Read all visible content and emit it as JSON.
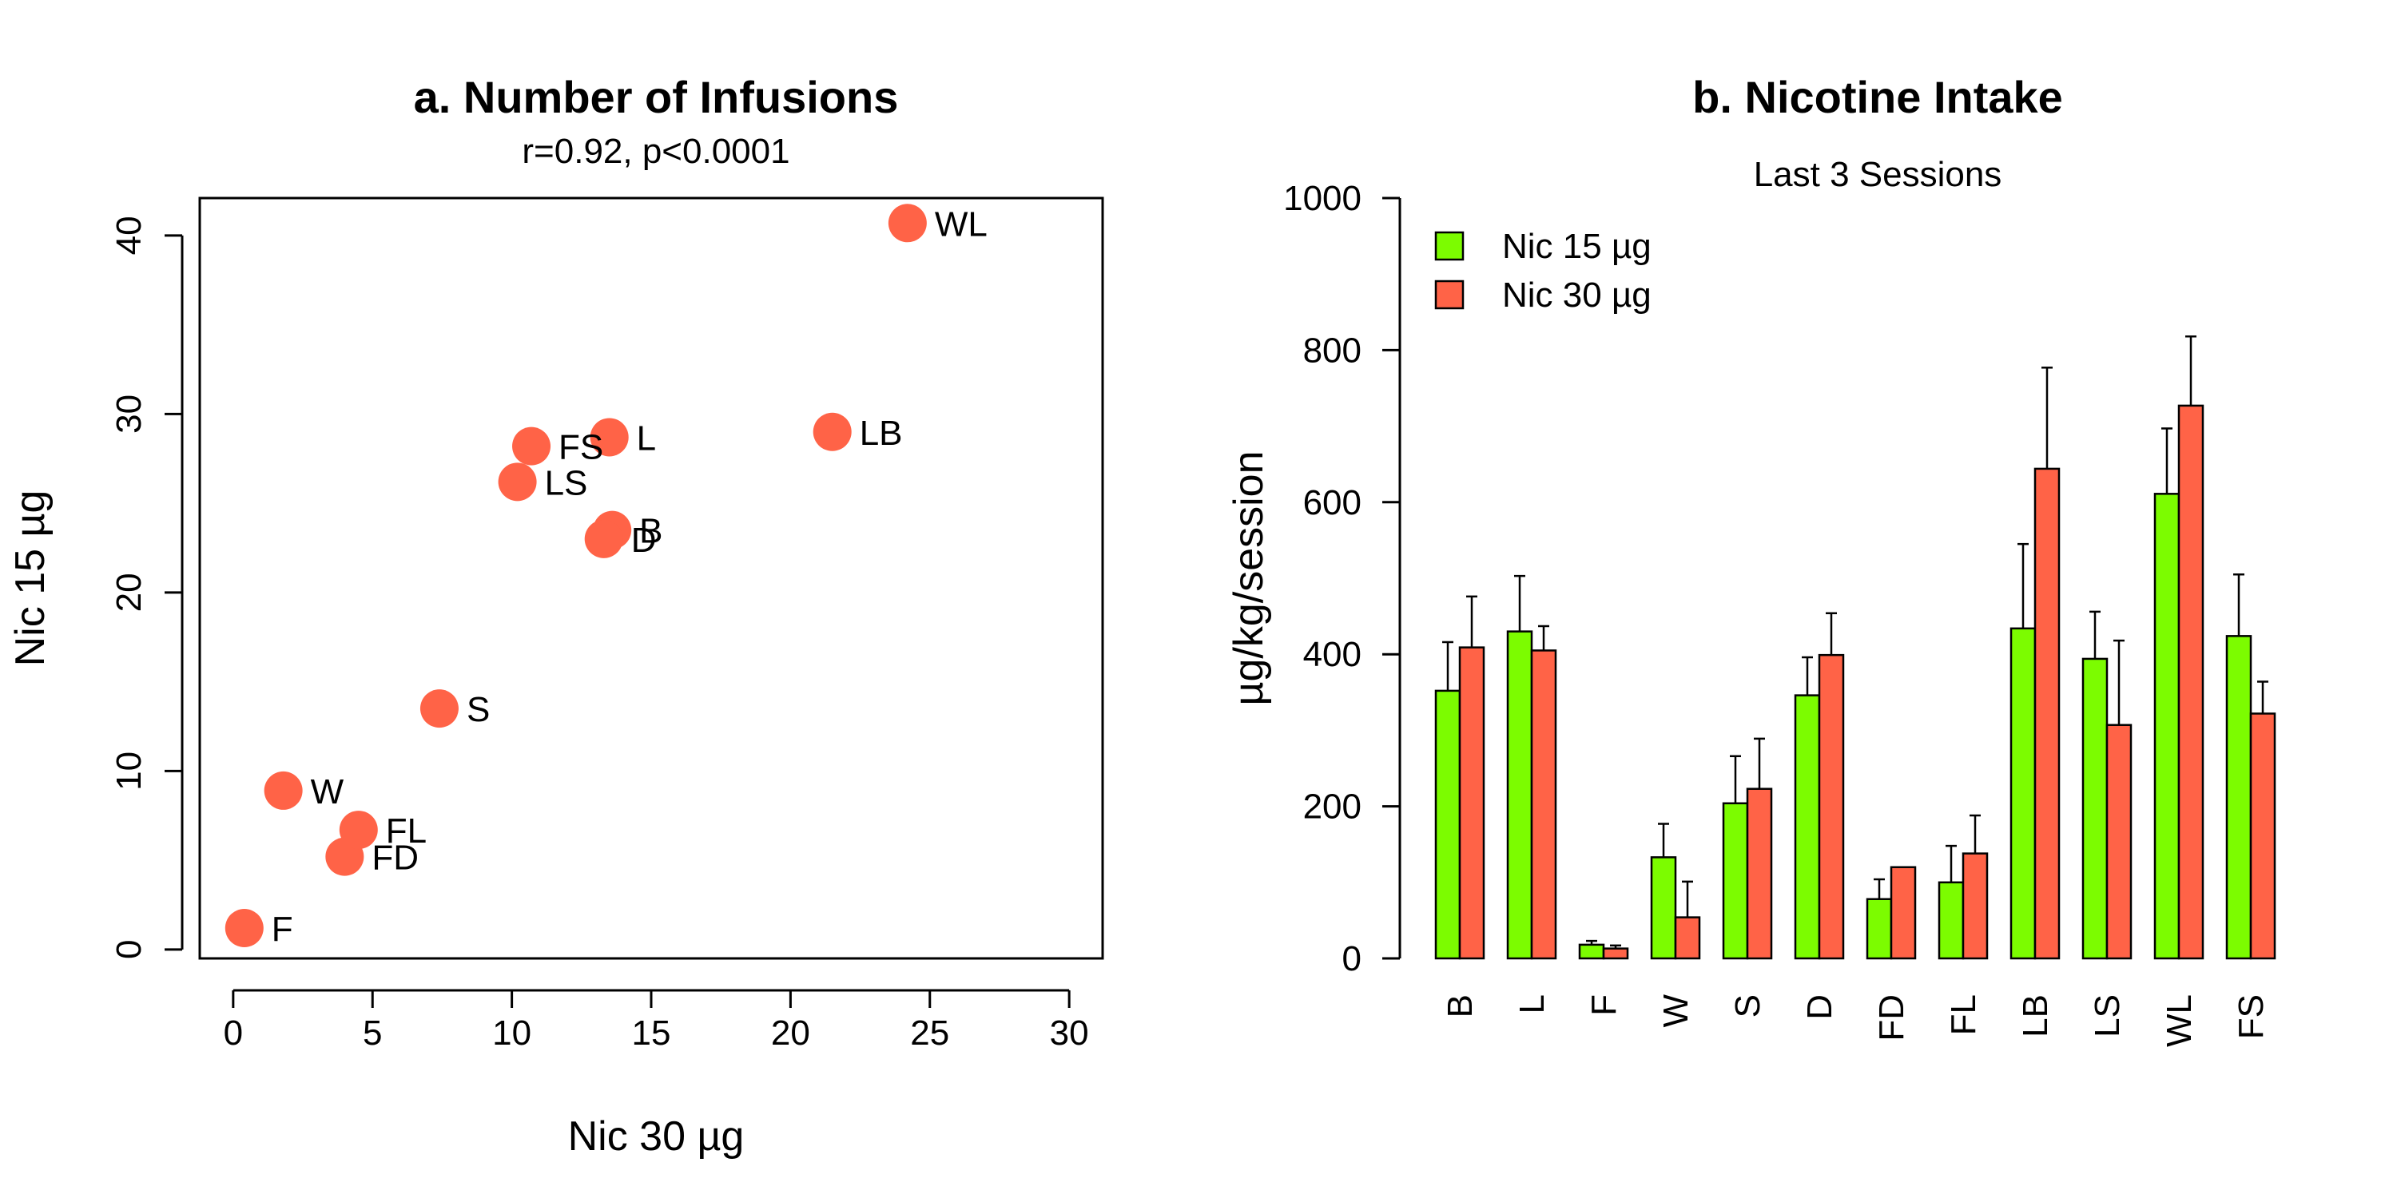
{
  "chart_data": [
    {
      "type": "scatter",
      "title": "a. Number of Infusions",
      "subtitle": "r=0.92, p<0.0001",
      "xlabel": "Nic 30 µg",
      "ylabel": "Nic 15 µg",
      "xlim": [
        -1.2,
        31.2
      ],
      "ylim": [
        -0.5,
        42.1
      ],
      "xticks": [
        "0",
        "5",
        "10",
        "15",
        "20",
        "25",
        "30"
      ],
      "yticks": [
        "0",
        "10",
        "20",
        "30",
        "40"
      ],
      "grid": false,
      "point_color": "#FF6347",
      "points": [
        {
          "label": "B",
          "x": 13.6,
          "y": 23.5
        },
        {
          "label": "L",
          "x": 13.5,
          "y": 28.7
        },
        {
          "label": "F",
          "x": 0.4,
          "y": 1.2
        },
        {
          "label": "W",
          "x": 1.8,
          "y": 8.9
        },
        {
          "label": "S",
          "x": 7.4,
          "y": 13.5
        },
        {
          "label": "D",
          "x": 13.3,
          "y": 23.0
        },
        {
          "label": "FD",
          "x": 4.0,
          "y": 5.2
        },
        {
          "label": "FL",
          "x": 4.5,
          "y": 6.7
        },
        {
          "label": "LB",
          "x": 21.5,
          "y": 29.0
        },
        {
          "label": "LS",
          "x": 10.2,
          "y": 26.2
        },
        {
          "label": "WL",
          "x": 24.2,
          "y": 40.7
        },
        {
          "label": "FS",
          "x": 10.7,
          "y": 28.2
        }
      ]
    },
    {
      "type": "bar",
      "title": "b. Nicotine Intake",
      "subtitle": "Last 3 Sessions",
      "xlabel": "",
      "ylabel": "µg/kg/session",
      "ylim": [
        0,
        1000
      ],
      "yticks": [
        "0",
        "200",
        "400",
        "600",
        "800",
        "1000"
      ],
      "categories": [
        "B",
        "L",
        "F",
        "W",
        "S",
        "D",
        "FD",
        "FL",
        "LB",
        "LS",
        "WL",
        "FS"
      ],
      "legend_position": "top-left",
      "grid": false,
      "series": [
        {
          "name": "Nic 15 µg",
          "color": "#7CFC00",
          "values": [
            352,
            430,
            18,
            133,
            204,
            346,
            78,
            100,
            434,
            394,
            611,
            424
          ],
          "error": [
            64,
            73,
            5,
            44,
            62,
            50,
            26,
            48,
            111,
            62,
            86,
            81
          ]
        },
        {
          "name": "Nic 30 µg",
          "color": "#FF6347",
          "values": [
            409,
            405,
            13,
            54,
            223,
            399,
            120,
            138,
            644,
            307,
            727,
            322
          ],
          "error": [
            67,
            32,
            4,
            47,
            66,
            55,
            0,
            50,
            133,
            111,
            91,
            42
          ]
        }
      ]
    }
  ]
}
